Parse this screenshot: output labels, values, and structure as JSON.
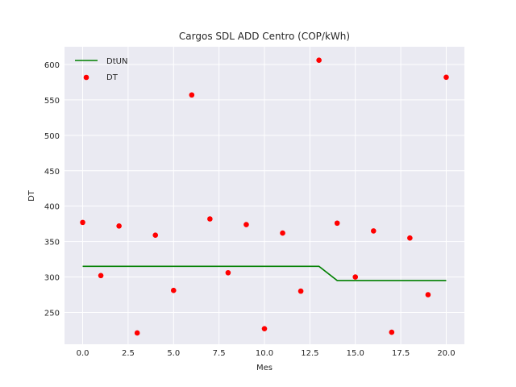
{
  "chart_data": {
    "type": "scatter",
    "title": "Cargos SDL ADD Centro (COP/kWh)",
    "xlabel": "Mes",
    "ylabel": "DT",
    "xlim": [
      -1,
      21
    ],
    "ylim": [
      205,
      625
    ],
    "xticks": [
      0,
      2.5,
      5,
      7.5,
      10,
      12.5,
      15,
      17.5,
      20
    ],
    "xtick_labels": [
      "0.0",
      "2.5",
      "5.0",
      "7.5",
      "10.0",
      "12.5",
      "15.0",
      "17.5",
      "20.0"
    ],
    "yticks": [
      250,
      300,
      350,
      400,
      450,
      500,
      550,
      600
    ],
    "ytick_labels": [
      "250",
      "300",
      "350",
      "400",
      "450",
      "500",
      "550",
      "600"
    ],
    "grid": true,
    "legend_position": "top-left",
    "series": [
      {
        "name": "DtUN",
        "kind": "line",
        "color": "#008000",
        "x": [
          0,
          1,
          2,
          3,
          4,
          5,
          6,
          7,
          8,
          9,
          10,
          11,
          12,
          13,
          14,
          15,
          16,
          17,
          18,
          19,
          20
        ],
        "y": [
          315,
          315,
          315,
          315,
          315,
          315,
          315,
          315,
          315,
          315,
          315,
          315,
          315,
          315,
          295,
          295,
          295,
          295,
          295,
          295,
          295
        ]
      },
      {
        "name": "DT",
        "kind": "scatter",
        "color": "#ff0000",
        "x": [
          0,
          1,
          2,
          3,
          4,
          5,
          6,
          7,
          8,
          9,
          10,
          11,
          12,
          13,
          14,
          15,
          16,
          17,
          18,
          19,
          20
        ],
        "y": [
          377,
          302,
          372,
          221,
          359,
          281,
          557,
          382,
          306,
          374,
          227,
          362,
          280,
          606,
          376,
          300,
          365,
          222,
          355,
          275,
          582
        ]
      }
    ]
  }
}
